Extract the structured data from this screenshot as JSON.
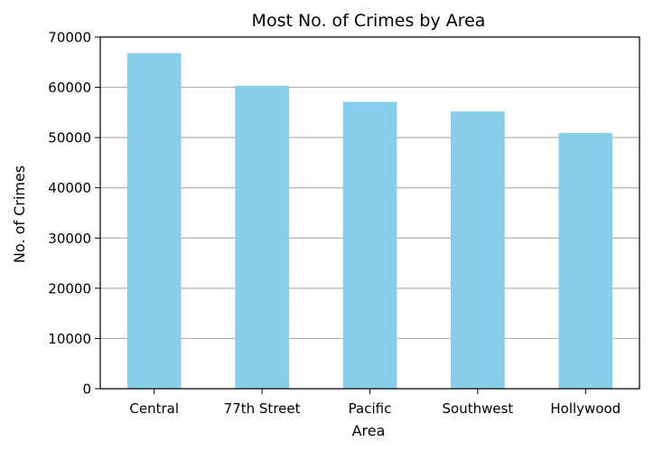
{
  "chart_data": {
    "type": "bar",
    "title": "Most No. of Crimes by Area",
    "xlabel": "Area",
    "ylabel": "No. of Crimes",
    "categories": [
      "Central",
      "77th Street",
      "Pacific",
      "Southwest",
      "Hollywood"
    ],
    "values": [
      66800,
      60300,
      57100,
      55200,
      50900
    ],
    "ylim": [
      0,
      70000
    ],
    "yticks": [
      0,
      10000,
      20000,
      30000,
      40000,
      50000,
      60000,
      70000
    ],
    "grid": "horizontal",
    "bar_color": "#87CEEB",
    "grid_color": "#b0b0b0"
  }
}
